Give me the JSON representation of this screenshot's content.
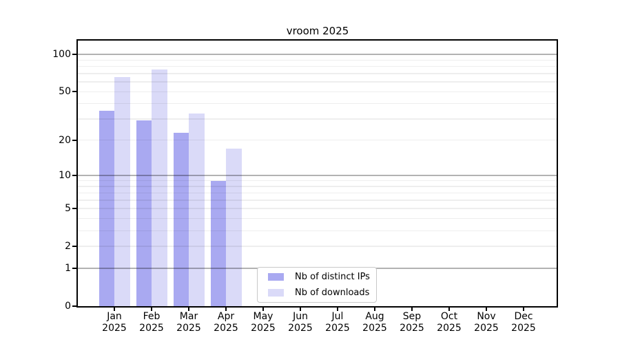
{
  "title": "vroom 2025",
  "chart_data": {
    "type": "bar",
    "title": "vroom 2025",
    "y_scale": "log1p",
    "ylim": [
      0,
      129
    ],
    "grid": "horizontal",
    "legend_position": "inside-bottom-center",
    "categories": [
      "Jan 2025",
      "Feb 2025",
      "Mar 2025",
      "Apr 2025",
      "May 2025",
      "Jun 2025",
      "Jul 2025",
      "Aug 2025",
      "Sep 2025",
      "Oct 2025",
      "Nov 2025",
      "Dec 2025"
    ],
    "series": [
      {
        "name": "Nb of distinct IPs",
        "color": "#a9a9f1",
        "values": [
          35,
          29,
          23,
          9,
          0,
          0,
          0,
          0,
          0,
          0,
          0,
          0
        ]
      },
      {
        "name": "Nb of downloads",
        "color": "#dadaf8",
        "values": [
          66,
          76,
          33,
          17,
          0,
          0,
          0,
          0,
          0,
          0,
          0,
          0
        ]
      }
    ],
    "y_ticks": [
      100,
      50,
      20,
      10,
      5,
      2,
      1,
      0
    ],
    "gridlines": {
      "major": [
        100,
        10,
        1
      ],
      "minor": [
        2,
        3,
        4,
        5,
        6,
        7,
        8,
        9,
        20,
        30,
        40,
        50,
        60,
        70,
        80,
        90
      ]
    }
  }
}
